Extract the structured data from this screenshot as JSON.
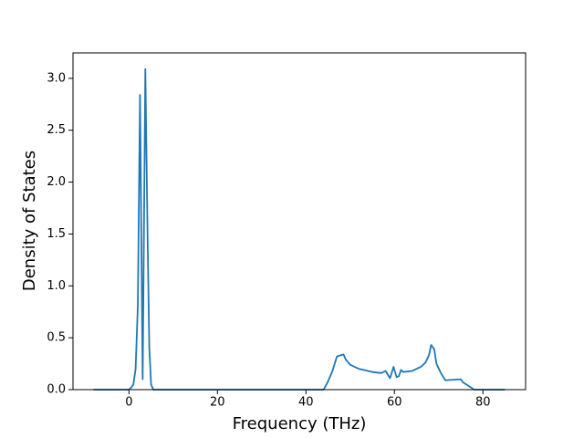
{
  "chart_data": {
    "type": "line",
    "x_label": "Frequency (THz)",
    "y_label": "Density of States",
    "color": "#1f77b4",
    "x": [
      -8,
      0,
      0.5,
      1,
      1.5,
      2,
      2.5,
      3.1,
      3.7,
      4.2,
      4.6,
      5,
      5.5,
      44,
      45,
      46,
      47,
      48.5,
      49,
      50,
      52,
      55,
      57,
      58,
      59,
      59.8,
      60.5,
      61,
      61.5,
      62,
      64,
      66,
      67,
      67.8,
      68.3,
      69,
      69.5,
      70.5,
      71.5,
      75,
      75.5,
      77,
      78,
      85
    ],
    "values": [
      0,
      0,
      0.02,
      0.05,
      0.2,
      0.8,
      2.84,
      0.1,
      3.09,
      1.5,
      0.4,
      0.05,
      0,
      0,
      0.08,
      0.18,
      0.32,
      0.34,
      0.29,
      0.24,
      0.2,
      0.17,
      0.16,
      0.18,
      0.11,
      0.22,
      0.12,
      0.13,
      0.19,
      0.17,
      0.18,
      0.22,
      0.26,
      0.33,
      0.43,
      0.39,
      0.25,
      0.16,
      0.09,
      0.1,
      0.07,
      0.03,
      0,
      0
    ],
    "xlim": [
      -12.65,
      89.65
    ],
    "ylim": [
      0,
      3.245
    ],
    "xticks": [
      0,
      20,
      40,
      60,
      80
    ],
    "yticks": [
      {
        "value": 0,
        "label": "0.0"
      },
      {
        "value": 0.5,
        "label": "0.5"
      },
      {
        "value": 1,
        "label": "1.0"
      },
      {
        "value": 1.5,
        "label": "1.5"
      },
      {
        "value": 2,
        "label": "2.0"
      },
      {
        "value": 2.5,
        "label": "2.5"
      },
      {
        "value": 3,
        "label": "3.0"
      }
    ]
  }
}
